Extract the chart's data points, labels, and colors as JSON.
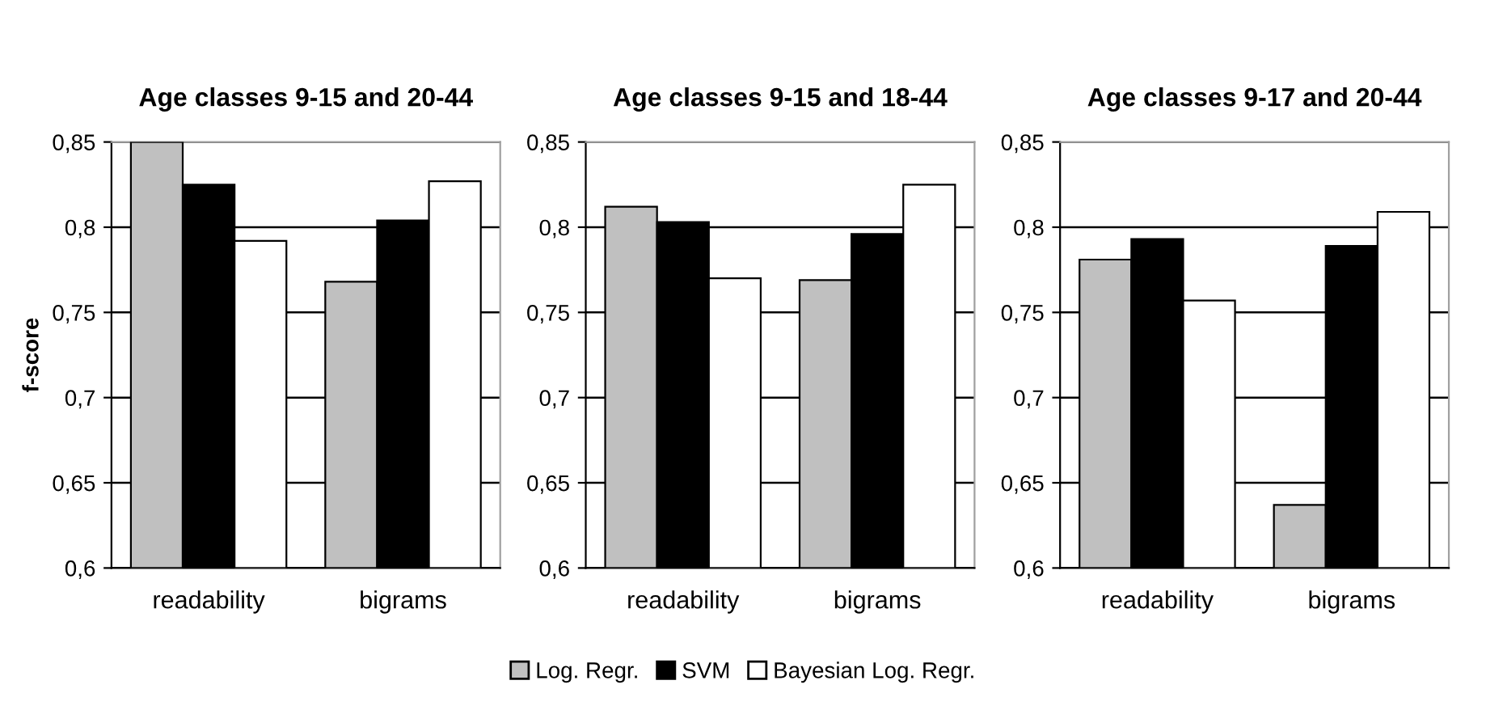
{
  "chart_data": [
    {
      "type": "bar",
      "title": "Age classes 9-15 and 20-44",
      "ylabel": "f-score",
      "categories": [
        "readability",
        "bigrams"
      ],
      "ylim": [
        0.6,
        0.85
      ],
      "yticks": [
        {
          "value": 0.6,
          "label": "0,6"
        },
        {
          "value": 0.65,
          "label": "0,65"
        },
        {
          "value": 0.7,
          "label": "0,7"
        },
        {
          "value": 0.75,
          "label": "0,75"
        },
        {
          "value": 0.8,
          "label": "0,8"
        },
        {
          "value": 0.85,
          "label": "0,85"
        }
      ],
      "grid": "y",
      "legend": "bottom",
      "series": [
        {
          "name": "Log. Regr.",
          "color": "#c0c0c0",
          "values": [
            0.85,
            0.768
          ]
        },
        {
          "name": "SVM",
          "color": "#000000",
          "values": [
            0.825,
            0.804
          ]
        },
        {
          "name": "Bayesian Log. Regr.",
          "color": "#ffffff",
          "values": [
            0.792,
            0.827
          ]
        }
      ]
    },
    {
      "type": "bar",
      "title": "Age classes 9-15 and 18-44",
      "categories": [
        "readability",
        "bigrams"
      ],
      "ylim": [
        0.6,
        0.85
      ],
      "yticks": [
        {
          "value": 0.6,
          "label": "0,6"
        },
        {
          "value": 0.65,
          "label": "0,65"
        },
        {
          "value": 0.7,
          "label": "0,7"
        },
        {
          "value": 0.75,
          "label": "0,75"
        },
        {
          "value": 0.8,
          "label": "0,8"
        },
        {
          "value": 0.85,
          "label": "0,85"
        }
      ],
      "grid": "y",
      "series": [
        {
          "color": "#c0c0c0",
          "values": [
            0.812,
            0.769
          ]
        },
        {
          "color": "#000000",
          "values": [
            0.803,
            0.796
          ]
        },
        {
          "color": "#ffffff",
          "values": [
            0.77,
            0.825
          ]
        }
      ]
    },
    {
      "type": "bar",
      "title": "Age classes 9-17 and 20-44",
      "categories": [
        "readability",
        "bigrams"
      ],
      "ylim": [
        0.6,
        0.85
      ],
      "yticks": [
        {
          "value": 0.6,
          "label": "0,6"
        },
        {
          "value": 0.65,
          "label": "0,65"
        },
        {
          "value": 0.7,
          "label": "0,7"
        },
        {
          "value": 0.75,
          "label": "0,75"
        },
        {
          "value": 0.8,
          "label": "0,8"
        },
        {
          "value": 0.85,
          "label": "0,85"
        }
      ],
      "grid": "y",
      "series": [
        {
          "color": "#c0c0c0",
          "values": [
            0.781,
            0.637
          ]
        },
        {
          "color": "#000000",
          "values": [
            0.793,
            0.789
          ]
        },
        {
          "color": "#ffffff",
          "values": [
            0.757,
            0.809
          ]
        }
      ]
    }
  ]
}
